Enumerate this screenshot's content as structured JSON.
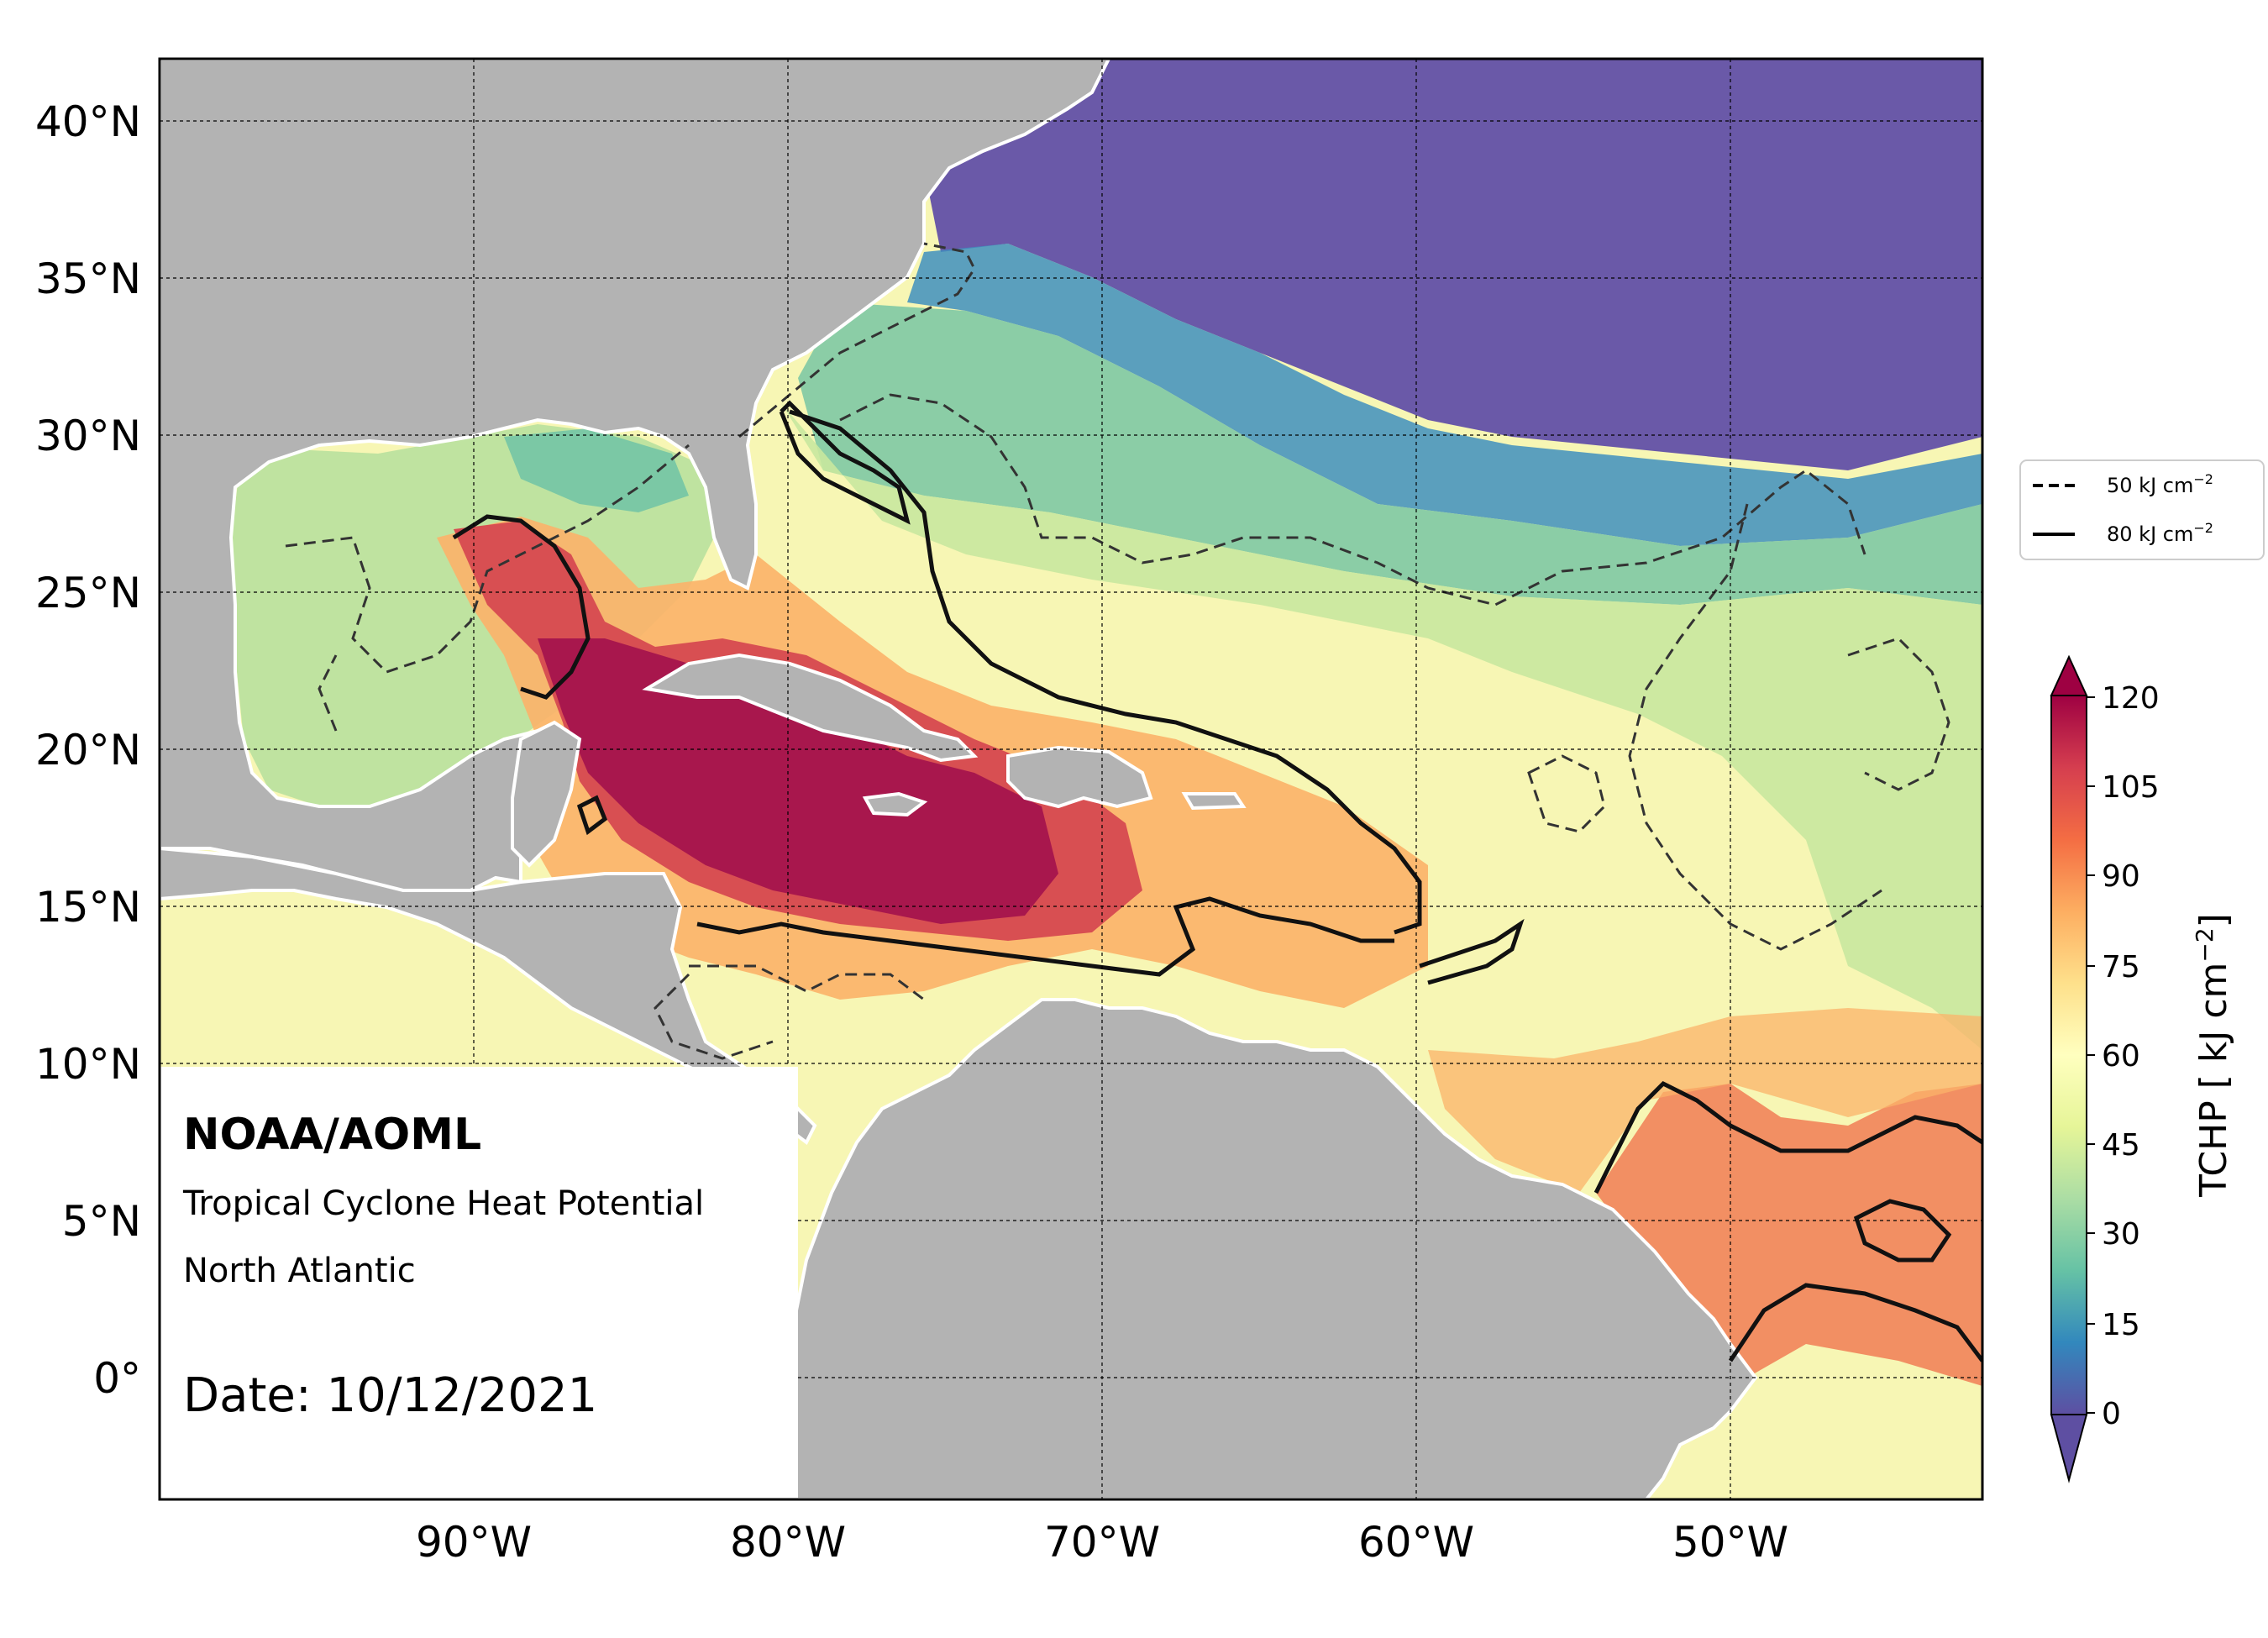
{
  "map": {
    "annotation": {
      "title": "NOAA/AOML",
      "subtitle1": "Tropical Cyclone Heat Potential",
      "subtitle2": "North Atlantic",
      "date_text": "Date: 10/12/2021"
    },
    "lat_labels": [
      "40°N",
      "35°N",
      "30°N",
      "25°N",
      "20°N",
      "15°N",
      "10°N",
      "5°N",
      "0°"
    ],
    "lon_labels": [
      "90°W",
      "80°W",
      "70°W",
      "60°W",
      "50°W"
    ],
    "extent": {
      "lon_min": -100,
      "lon_max": -42,
      "lat_min": -4,
      "lat_max": 42
    },
    "legend": [
      {
        "label": "50 kJ cm",
        "sup": "−2",
        "style": "dashed"
      },
      {
        "label": "80 kJ cm",
        "sup": "−2",
        "style": "solid"
      }
    ],
    "colorbar": {
      "label": "TCHP [ kJ cm",
      "label_sup": "−2",
      "label_end": "]",
      "ticks": [
        "120",
        "105",
        "90",
        "75",
        "60",
        "45",
        "30",
        "15",
        "0"
      ],
      "colors": [
        "#5e4fa2",
        "#3288bd",
        "#66c2a5",
        "#abdda4",
        "#e6f598",
        "#ffffbf",
        "#fee08b",
        "#fdae61",
        "#f46d43",
        "#d53e4f",
        "#9e0142"
      ],
      "land_color": "#b3b3b3"
    }
  }
}
